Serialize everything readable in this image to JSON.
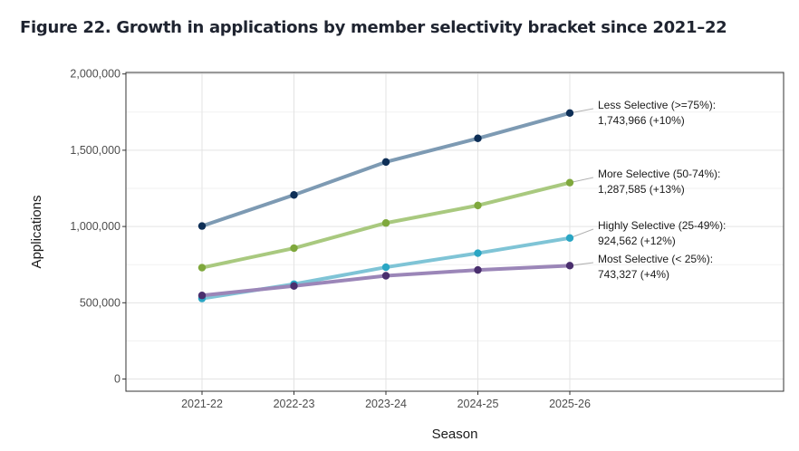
{
  "title": "Figure 22. Growth in applications by member selectivity bracket since 2021–22",
  "chart_data": {
    "type": "line",
    "title": "Figure 22. Growth in applications by member selectivity bracket since 2021–22",
    "xlabel": "Season",
    "ylabel": "Applications",
    "categories": [
      "2021-22",
      "2022-23",
      "2023-24",
      "2024-25",
      "2025-26"
    ],
    "ylim": [
      -80000,
      2010000
    ],
    "yticks": [
      0,
      500000,
      1000000,
      1500000,
      2000000
    ],
    "ytick_labels": [
      "0",
      "500,000",
      "1,000,000",
      "1,500,000",
      "2,000,000"
    ],
    "grid": true,
    "legend": "direct labels at line ends",
    "series": [
      {
        "name": "Less Selective (>=75%)",
        "values": [
          1003000,
          1207000,
          1423000,
          1578000,
          1743966
        ],
        "line_color": "#7d9ab3",
        "point_color": "#0e2f57",
        "label_line1": "Less Selective (>=75%):",
        "label_line2": "1,743,966 (+10%)"
      },
      {
        "name": "More Selective (50-74%)",
        "values": [
          730000,
          858000,
          1023000,
          1138000,
          1287585
        ],
        "line_color": "#a9c97f",
        "point_color": "#7fa83c",
        "label_line1": "More Selective (50-74%):",
        "label_line2": "1,287,585 (+13%)"
      },
      {
        "name": "Highly Selective (25-49%)",
        "values": [
          528000,
          622000,
          733000,
          825000,
          924562
        ],
        "line_color": "#7fc4d6",
        "point_color": "#2aa6c4",
        "label_line1": "Highly Selective (25-49%):",
        "label_line2": "924,562 (+12%)"
      },
      {
        "name": "Most Selective (< 25%)",
        "values": [
          548000,
          610000,
          677000,
          715000,
          743327
        ],
        "line_color": "#9b86b8",
        "point_color": "#4a2f6e",
        "label_line1": "Most Selective (< 25%):",
        "label_line2": "743,327 (+4%)"
      }
    ]
  }
}
